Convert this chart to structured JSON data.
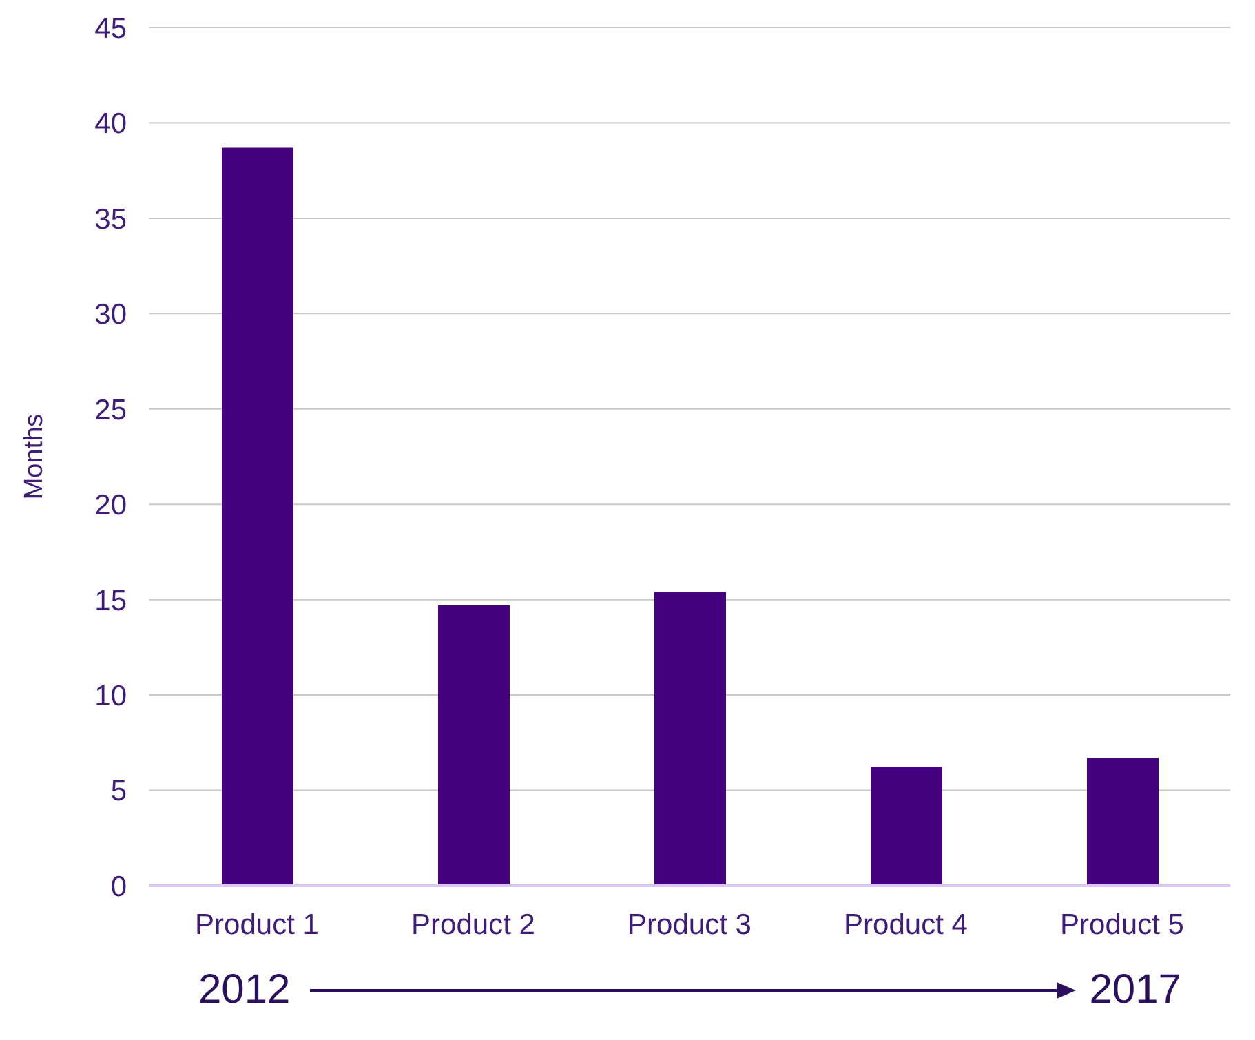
{
  "chart_data": {
    "type": "bar",
    "ylabel": "Months",
    "categories": [
      "Product 1",
      "Product 2",
      "Product 3",
      "Product 4",
      "Product 5"
    ],
    "values": [
      38.7,
      14.7,
      15.4,
      6.25,
      6.7
    ],
    "color": "#45027e",
    "ylim": [
      0,
      45
    ],
    "yticks": [
      0,
      5,
      10,
      15,
      20,
      25,
      30,
      35,
      40,
      45
    ],
    "grid": "y",
    "annotations": [
      "2012",
      "2017"
    ]
  }
}
